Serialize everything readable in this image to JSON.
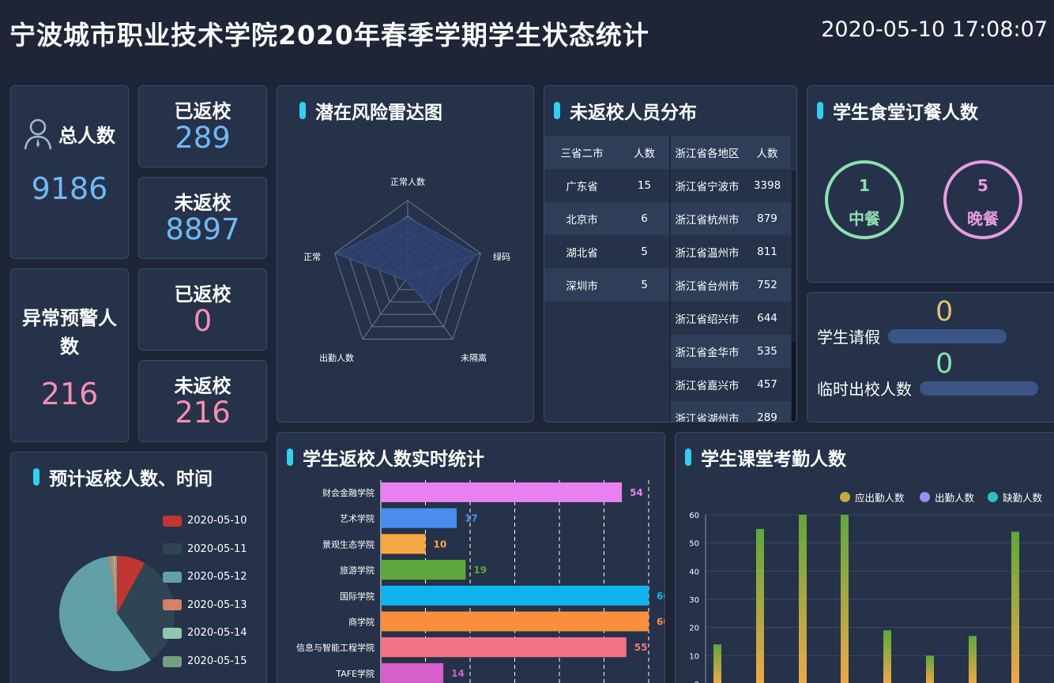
{
  "header": {
    "title": "宁波城市职业技术学院2020年春季学期学生状态统计",
    "datetime": "2020-05-10 17:08:07"
  },
  "total": {
    "label": "总人数",
    "value": "9186",
    "icon": "user-icon"
  },
  "returned": {
    "label": "已返校",
    "value": "289"
  },
  "not_returned": {
    "label": "未返校",
    "value": "8897"
  },
  "abnormal": {
    "label": "异常预警人数",
    "value": "216"
  },
  "abnormal_returned": {
    "label": "已返校",
    "value": "0"
  },
  "abnormal_not_returned": {
    "label": "未返校",
    "value": "216"
  },
  "radar": {
    "title": "潜在风险雷达图",
    "indicators": [
      "正常人数",
      "绿码",
      "未隔离",
      "出勤人数",
      "正常"
    ],
    "values": [
      0.78,
      0.95,
      0.45,
      0.05,
      0.98
    ]
  },
  "distribution": {
    "title": "未返校人员分布",
    "left_headers": [
      "三省二市",
      "人数"
    ],
    "left_rows": [
      [
        "广东省",
        "15"
      ],
      [
        "北京市",
        "6"
      ],
      [
        "湖北省",
        "5"
      ],
      [
        "深圳市",
        "5"
      ]
    ],
    "right_headers": [
      "浙江省各地区",
      "人数"
    ],
    "right_rows": [
      [
        "浙江省宁波市",
        "3398"
      ],
      [
        "浙江省杭州市",
        "879"
      ],
      [
        "浙江省温州市",
        "811"
      ],
      [
        "浙江省台州市",
        "752"
      ],
      [
        "浙江省绍兴市",
        "644"
      ],
      [
        "浙江省金华市",
        "535"
      ],
      [
        "浙江省嘉兴市",
        "457"
      ],
      [
        "浙江省湖州市",
        "289"
      ]
    ]
  },
  "canteen": {
    "title": "学生食堂订餐人数",
    "lunch": {
      "label": "中餐",
      "value": "1",
      "color": "#8ee0b0"
    },
    "dinner": {
      "label": "晚餐",
      "value": "5",
      "color": "#e89ce0"
    }
  },
  "leave": {
    "leave_label": "学生请假",
    "leave_value": "0",
    "temp_label": "临时出校人数",
    "temp_value": "0"
  },
  "expected": {
    "title": "预计返校人数、时间",
    "legend": [
      {
        "label": "2020-05-10",
        "color": "#c23531"
      },
      {
        "label": "2020-05-11",
        "color": "#2f4554"
      },
      {
        "label": "2020-05-12",
        "color": "#61a0a8"
      },
      {
        "label": "2020-05-13",
        "color": "#d48265"
      },
      {
        "label": "2020-05-14",
        "color": "#91c7ae"
      },
      {
        "label": "2020-05-15",
        "color": "#749f83"
      }
    ]
  },
  "chart_data": [
    {
      "type": "pie",
      "title": "预计返校人数、时间",
      "categories": [
        "2020-05-10",
        "2020-05-11",
        "2020-05-12",
        "2020-05-13",
        "2020-05-14",
        "2020-05-15"
      ],
      "values": [
        8,
        32,
        58,
        1,
        0.5,
        0.5
      ]
    },
    {
      "type": "bar",
      "orientation": "horizontal",
      "title": "学生返校人数实时统计",
      "categories": [
        "财会金融学院",
        "艺术学院",
        "景观生态学院",
        "旅游学院",
        "国际学院",
        "商学院",
        "信息与智能工程学院",
        "TAFE学院"
      ],
      "values": [
        54,
        17,
        10,
        19,
        60,
        60,
        55,
        14
      ],
      "colors": [
        "#e880f0",
        "#4a8cf0",
        "#f5a742",
        "#5da83a",
        "#0fb4ee",
        "#f98f3a",
        "#f47385",
        "#d65fcc"
      ],
      "xlim": [
        0,
        60
      ]
    },
    {
      "type": "bar",
      "title": "学生课堂考勤人数",
      "series": [
        {
          "name": "应出勤人数",
          "values": [
            14,
            55,
            60,
            60,
            19,
            10,
            17,
            54
          ]
        },
        {
          "name": "出勤人数",
          "values": []
        },
        {
          "name": "缺勤人数",
          "values": []
        }
      ],
      "legend_colors": [
        "#c9a93a",
        "#9d8cf5",
        "#2fbfc7"
      ],
      "yticks": [
        "0",
        "10",
        "20",
        "30",
        "40",
        "50",
        "60"
      ],
      "ylim": [
        0,
        60
      ]
    }
  ],
  "panels": {
    "bar_title": "学生返校人数实时统计",
    "attendance_title": "学生课堂考勤人数"
  }
}
